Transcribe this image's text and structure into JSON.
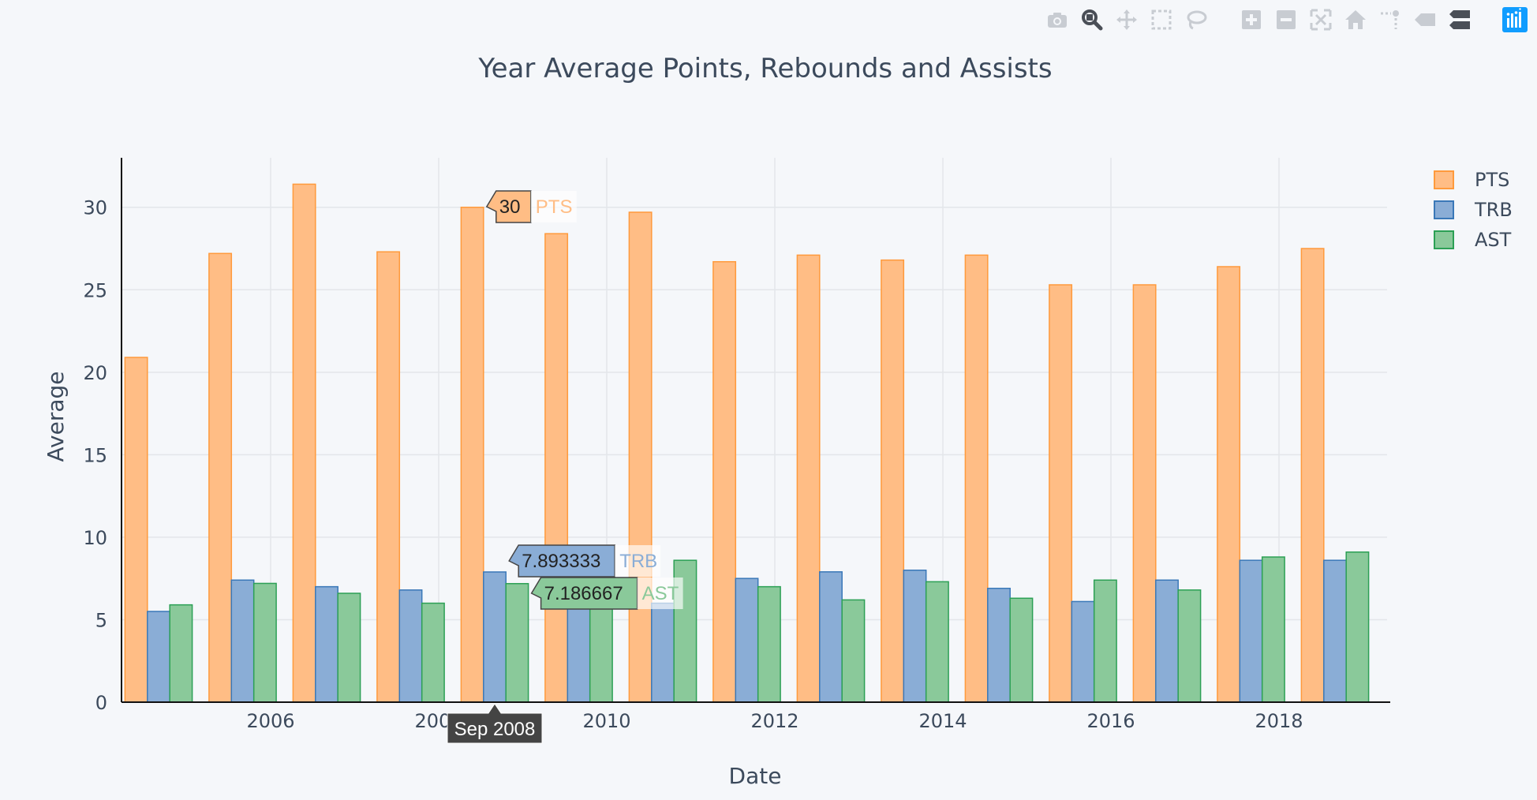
{
  "chart_data": {
    "type": "bar",
    "title": "Year Average Points, Rebounds and Assists",
    "xlabel": "Date",
    "ylabel": "Average",
    "x_tick_labels": [
      "2006",
      "2008",
      "2010",
      "2012",
      "2014",
      "2016",
      "2018"
    ],
    "y_tick_labels": [
      "0",
      "5",
      "10",
      "15",
      "20",
      "25",
      "30"
    ],
    "ylim": [
      0,
      33
    ],
    "grid": true,
    "legend_position": "top-right",
    "categories": [
      "2004-09",
      "2005-09",
      "2006-09",
      "2007-09",
      "2008-09",
      "2009-09",
      "2010-09",
      "2011-09",
      "2012-09",
      "2013-09",
      "2014-09",
      "2015-09",
      "2016-09",
      "2017-09",
      "2018-09"
    ],
    "series": [
      {
        "name": "PTS",
        "color": "#ffbd85",
        "stroke": "#ff9a3c",
        "values": [
          20.9,
          27.2,
          31.4,
          27.3,
          30.0,
          28.4,
          29.7,
          26.7,
          27.1,
          26.8,
          27.1,
          25.3,
          25.3,
          26.4,
          27.5
        ]
      },
      {
        "name": "TRB",
        "color": "#8aadd6",
        "stroke": "#3a78b8",
        "values": [
          5.5,
          7.4,
          7.0,
          6.8,
          7.893333,
          6.5,
          6.0,
          7.5,
          7.9,
          8.0,
          6.9,
          6.1,
          7.4,
          8.6,
          8.6
        ]
      },
      {
        "name": "AST",
        "color": "#8ac99a",
        "stroke": "#2ca055",
        "values": [
          5.9,
          7.2,
          6.6,
          6.0,
          7.186667,
          6.4,
          8.6,
          7.0,
          6.2,
          7.3,
          6.3,
          7.4,
          6.8,
          8.8,
          9.1
        ]
      }
    ],
    "hover": {
      "x_label": "Sep 2008",
      "items": [
        {
          "value": "30",
          "series": "PTS"
        },
        {
          "value": "7.893333",
          "series": "TRB"
        },
        {
          "value": "7.186667",
          "series": "AST"
        }
      ]
    }
  },
  "modebar": {
    "buttons": [
      "camera-icon",
      "zoom-icon",
      "pan-icon",
      "box-select-icon",
      "lasso-icon",
      "zoom-in-icon",
      "zoom-out-icon",
      "autoscale-icon",
      "home-icon",
      "spike-lines-icon",
      "hover-closest-icon",
      "hover-compare-icon",
      "plotly-logo-icon"
    ]
  }
}
